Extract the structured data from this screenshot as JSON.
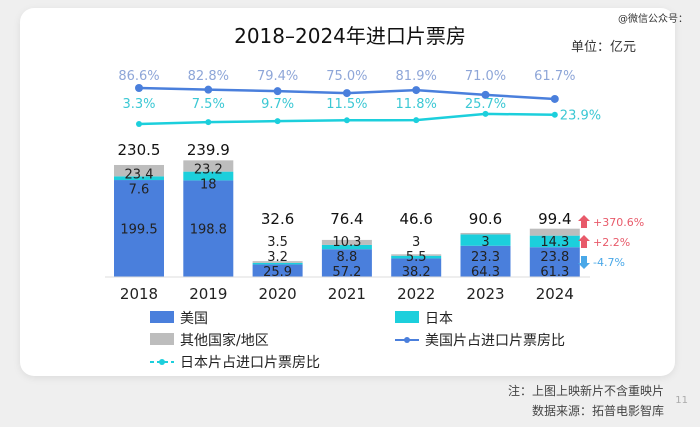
{
  "watermark": "@微信公众号：",
  "unit": "单位：亿元",
  "footnote": "注：上图上映新片不含重映片",
  "source": "数据来源：拓普电影智库",
  "page_number": "11",
  "chart_data": {
    "type": "bar",
    "stacked": true,
    "title": "2018–2024年进口片票房",
    "categories": [
      "2018",
      "2019",
      "2020",
      "2021",
      "2022",
      "2023",
      "2024"
    ],
    "totals": [
      230.5,
      239.9,
      32.6,
      76.4,
      46.6,
      90.6,
      99.4
    ],
    "series": [
      {
        "name": "美国",
        "values": [
          199.5,
          198.8,
          25.9,
          57.2,
          38.2,
          64.3,
          61.3
        ],
        "color": "#4a7fdc"
      },
      {
        "name": "日本",
        "values": [
          7.6,
          18.0,
          3.2,
          8.8,
          5.5,
          23.3,
          23.8
        ],
        "color": "#1ccfdc"
      },
      {
        "name": "其他国家/地区",
        "values": [
          23.4,
          23.2,
          3.5,
          10.3,
          3.0,
          3.0,
          14.3
        ],
        "color": "#bdbdbd"
      }
    ],
    "lines": [
      {
        "name": "美国片占进口片票房比",
        "values": [
          86.6,
          82.8,
          79.4,
          75.0,
          81.9,
          71.0,
          61.7
        ],
        "labels": [
          "86.6%",
          "82.8%",
          "79.4%",
          "75.0%",
          "81.9%",
          "71.0%",
          "61.7%"
        ],
        "color": "#4a7fdc"
      },
      {
        "name": "日本片占进口片票房比",
        "values": [
          3.3,
          7.5,
          9.7,
          11.5,
          11.8,
          25.7,
          23.9
        ],
        "labels": [
          "3.3%",
          "7.5%",
          "9.7%",
          "11.5%",
          "11.8%",
          "25.7%",
          "23.9%"
        ],
        "color": "#1ccfdc"
      }
    ],
    "annotations": [
      {
        "text": "+370.6%",
        "direction": "up",
        "color": "#e85a6a"
      },
      {
        "text": "+2.2%",
        "direction": "up",
        "color": "#e85a6a"
      },
      {
        "text": "-4.7%",
        "direction": "down",
        "color": "#4aa8e8"
      }
    ],
    "legend_placement": "bottom",
    "grid": false
  }
}
